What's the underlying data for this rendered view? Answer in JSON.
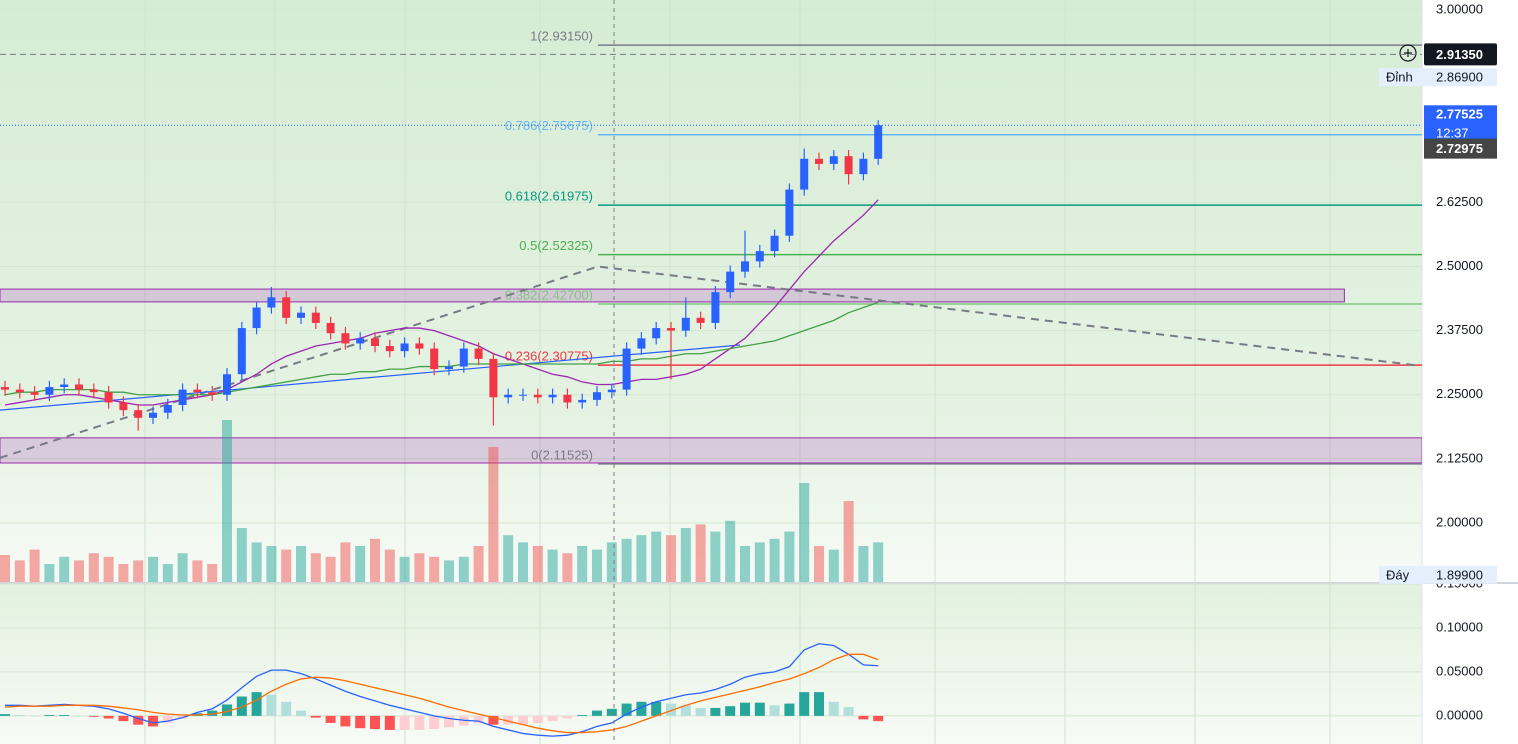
{
  "chart_data": {
    "type": "candlestick",
    "ylim": [
      1.885,
      3.0195
    ],
    "yticks": [
      {
        "value": 3.0,
        "label": "3.00000"
      },
      {
        "value": 2.625,
        "label": "2.62500"
      },
      {
        "value": 2.5,
        "label": "2.50000"
      },
      {
        "value": 2.375,
        "label": "2.37500"
      },
      {
        "value": 2.25,
        "label": "2.25000"
      },
      {
        "value": 2.125,
        "label": "2.12500"
      },
      {
        "value": 2.0,
        "label": "2.00000"
      }
    ],
    "up_color": "#2962ff",
    "down_color": "#f23645",
    "open": [
      2.265,
      2.26,
      2.255,
      2.25,
      2.265,
      2.27,
      2.26,
      2.255,
      2.235,
      2.22,
      2.205,
      2.215,
      2.23,
      2.26,
      2.255,
      2.25,
      2.29,
      2.38,
      2.42,
      2.44,
      2.4,
      2.41,
      2.39,
      2.37,
      2.35,
      2.36,
      2.345,
      2.335,
      2.35,
      2.34,
      2.3,
      2.305,
      2.34,
      2.32,
      2.245,
      2.25,
      2.25,
      2.245,
      2.25,
      2.235,
      2.24,
      2.255,
      2.26,
      2.34,
      2.36,
      2.38,
      2.375,
      2.4,
      2.39,
      2.45,
      2.49,
      2.51,
      2.53,
      2.56,
      2.65,
      2.71,
      2.7,
      2.715,
      2.68,
      2.71
    ],
    "high": [
      2.277,
      2.272,
      2.267,
      2.277,
      2.282,
      2.282,
      2.272,
      2.267,
      2.247,
      2.232,
      2.227,
      2.242,
      2.272,
      2.272,
      2.267,
      2.302,
      2.392,
      2.432,
      2.46,
      2.452,
      2.422,
      2.422,
      2.402,
      2.382,
      2.372,
      2.372,
      2.357,
      2.362,
      2.362,
      2.352,
      2.317,
      2.352,
      2.352,
      2.332,
      2.262,
      2.262,
      2.262,
      2.262,
      2.262,
      2.252,
      2.267,
      2.272,
      2.352,
      2.372,
      2.392,
      2.392,
      2.44,
      2.412,
      2.462,
      2.502,
      2.57,
      2.542,
      2.572,
      2.662,
      2.73,
      2.722,
      2.727,
      2.727,
      2.722,
      2.785
    ],
    "low": [
      2.248,
      2.243,
      2.238,
      2.238,
      2.253,
      2.248,
      2.243,
      2.223,
      2.208,
      2.18,
      2.193,
      2.203,
      2.218,
      2.243,
      2.238,
      2.238,
      2.278,
      2.368,
      2.408,
      2.388,
      2.388,
      2.378,
      2.358,
      2.338,
      2.338,
      2.333,
      2.323,
      2.323,
      2.328,
      2.288,
      2.288,
      2.293,
      2.308,
      2.19,
      2.233,
      2.238,
      2.233,
      2.233,
      2.223,
      2.223,
      2.228,
      2.243,
      2.248,
      2.328,
      2.348,
      2.28,
      2.363,
      2.378,
      2.378,
      2.438,
      2.478,
      2.498,
      2.518,
      2.548,
      2.638,
      2.688,
      2.688,
      2.66,
      2.668,
      2.698
    ],
    "close": [
      2.26,
      2.255,
      2.25,
      2.265,
      2.27,
      2.26,
      2.255,
      2.235,
      2.22,
      2.205,
      2.215,
      2.23,
      2.26,
      2.255,
      2.25,
      2.29,
      2.38,
      2.42,
      2.44,
      2.4,
      2.41,
      2.39,
      2.37,
      2.35,
      2.36,
      2.345,
      2.335,
      2.35,
      2.34,
      2.3,
      2.305,
      2.34,
      2.32,
      2.245,
      2.25,
      2.25,
      2.245,
      2.25,
      2.235,
      2.24,
      2.255,
      2.26,
      2.34,
      2.36,
      2.38,
      2.375,
      2.4,
      2.39,
      2.45,
      2.49,
      2.51,
      2.53,
      2.56,
      2.65,
      2.71,
      2.7,
      2.715,
      2.68,
      2.71,
      2.77525
    ],
    "volume": {
      "ylim": [
        0,
        100
      ],
      "up_color": "rgba(38,166,154,0.5)",
      "down_color": "rgba(239,83,80,0.5)",
      "values": [
        15,
        12,
        18,
        10,
        14,
        12,
        16,
        14,
        10,
        12,
        14,
        10,
        16,
        12,
        10,
        90,
        30,
        22,
        20,
        18,
        20,
        16,
        14,
        22,
        20,
        24,
        18,
        14,
        16,
        14,
        12,
        14,
        20,
        75,
        26,
        22,
        20,
        18,
        16,
        20,
        18,
        22,
        24,
        26,
        28,
        26,
        30,
        32,
        28,
        34,
        20,
        22,
        24,
        28,
        55,
        20,
        18,
        45,
        20,
        22
      ]
    },
    "moving_averages": [
      {
        "color": "#9c27b0",
        "values": [
          2.23,
          2.235,
          2.24,
          2.245,
          2.25,
          2.25,
          2.245,
          2.24,
          2.235,
          2.23,
          2.23,
          2.235,
          2.24,
          2.245,
          2.25,
          2.26,
          2.275,
          2.29,
          2.31,
          2.325,
          2.335,
          2.345,
          2.35,
          2.355,
          2.36,
          2.37,
          2.375,
          2.38,
          2.38,
          2.375,
          2.365,
          2.355,
          2.345,
          2.33,
          2.32,
          2.31,
          2.3,
          2.29,
          2.285,
          2.275,
          2.27,
          2.27,
          2.275,
          2.28,
          2.28,
          2.285,
          2.29,
          2.3,
          2.32,
          2.34,
          2.36,
          2.39,
          2.42,
          2.455,
          2.49,
          2.52,
          2.55,
          2.575,
          2.6,
          2.63
        ]
      },
      {
        "color": "#43a047",
        "values": [
          2.25,
          2.255,
          2.255,
          2.26,
          2.26,
          2.26,
          2.26,
          2.255,
          2.255,
          2.25,
          2.25,
          2.25,
          2.25,
          2.25,
          2.25,
          2.255,
          2.26,
          2.265,
          2.27,
          2.275,
          2.28,
          2.285,
          2.29,
          2.29,
          2.295,
          2.295,
          2.3,
          2.3,
          2.305,
          2.305,
          2.305,
          2.31,
          2.31,
          2.31,
          2.31,
          2.31,
          2.31,
          2.31,
          2.31,
          2.31,
          2.31,
          2.315,
          2.315,
          2.32,
          2.32,
          2.325,
          2.33,
          2.33,
          2.335,
          2.34,
          2.345,
          2.35,
          2.355,
          2.365,
          2.375,
          2.385,
          2.395,
          2.41,
          2.42,
          2.43
        ]
      }
    ],
    "trend_lines": [
      {
        "color": "#787b86",
        "dashed": true,
        "points": [
          {
            "x": -0.34,
            "y": 2.127
          },
          {
            "x": 40.07,
            "y": 2.5
          },
          {
            "x": 95.47,
            "y": 2.307
          }
        ]
      },
      {
        "color": "#2962ff",
        "dashed": false,
        "points": [
          {
            "x": -0.34,
            "y": 2.22
          },
          {
            "x": 49.66,
            "y": 2.347
          }
        ]
      }
    ],
    "zones": [
      {
        "color": "rgba(156,39,176,0.2)",
        "border": "#9c27b0",
        "xlim": [
          -0.34,
          90.5
        ],
        "ylim": [
          2.431,
          2.456
        ]
      },
      {
        "color": "rgba(156,39,176,0.2)",
        "border": "#9c27b0",
        "xlim": [
          -0.34,
          95.75
        ],
        "ylim": [
          2.117,
          2.166
        ]
      }
    ],
    "fib_levels": [
      {
        "label": "1(2.93150)",
        "value": 2.9315,
        "color": "#787b86"
      },
      {
        "label": "0.786(2.75675)",
        "value": 2.75675,
        "color": "#64b5f6"
      },
      {
        "label": "0.618(2.61975)",
        "value": 2.61975,
        "color": "#089981"
      },
      {
        "label": "0.5(2.52325)",
        "value": 2.52325,
        "color": "#4caf50"
      },
      {
        "label": "0.382(2.42700)",
        "value": 2.427,
        "color": "#81c784"
      },
      {
        "label": "0.236(2.30775)",
        "value": 2.30775,
        "color": "#f23645"
      },
      {
        "label": "0(2.11525)",
        "value": 2.11525,
        "color": "#787b86"
      }
    ],
    "crosshair": {
      "x": 41.15,
      "y": {
        "value": 2.9135,
        "label": "2.91350"
      }
    },
    "price_tags": [
      {
        "caption": "Đỉnh",
        "value": 2.869,
        "label": "2.86900"
      },
      {
        "caption": "12:37",
        "value": 2.77525,
        "label": "2.77525",
        "color": "#2962ff"
      },
      {
        "value": 2.72975,
        "label": "2.72975",
        "color": "#454545"
      },
      {
        "caption": "Đáy",
        "value": 1.899,
        "label": "1.89900"
      }
    ],
    "macd": {
      "ylim": [
        -0.032,
        0.15
      ],
      "yticks": [
        {
          "value": 0.15,
          "label": "0.15000"
        },
        {
          "value": 0.1,
          "label": "0.10000"
        },
        {
          "value": 0.05,
          "label": "0.05000"
        },
        {
          "value": 0,
          "label": "0.00000"
        }
      ],
      "macd": {
        "color": "#2962ff",
        "values": [
          0.012,
          0.012,
          0.011,
          0.012,
          0.013,
          0.012,
          0.011,
          0.008,
          0.003,
          -0.003,
          -0.008,
          -0.006,
          -0.002,
          0.004,
          0.008,
          0.018,
          0.032,
          0.045,
          0.052,
          0.052,
          0.048,
          0.042,
          0.035,
          0.028,
          0.022,
          0.017,
          0.012,
          0.008,
          0.004,
          0,
          -0.003,
          -0.005,
          -0.006,
          -0.012,
          -0.016,
          -0.02,
          -0.022,
          -0.023,
          -0.022,
          -0.018,
          -0.012,
          -0.008,
          0.002,
          0.01,
          0.016,
          0.02,
          0.024,
          0.026,
          0.03,
          0.036,
          0.044,
          0.048,
          0.05,
          0.056,
          0.075,
          0.082,
          0.08,
          0.07,
          0.058,
          0.057
        ]
      },
      "signal": {
        "color": "#ff6d00",
        "values": [
          0.01,
          0.011,
          0.011,
          0.011,
          0.012,
          0.012,
          0.012,
          0.011,
          0.009,
          0.007,
          0.004,
          0.002,
          0.001,
          0.001,
          0.002,
          0.005,
          0.01,
          0.018,
          0.028,
          0.036,
          0.042,
          0.044,
          0.043,
          0.04,
          0.036,
          0.032,
          0.028,
          0.024,
          0.02,
          0.015,
          0.01,
          0.006,
          0.002,
          -0.002,
          -0.006,
          -0.01,
          -0.014,
          -0.017,
          -0.019,
          -0.019,
          -0.018,
          -0.016,
          -0.012,
          -0.006,
          0,
          0.006,
          0.012,
          0.017,
          0.021,
          0.025,
          0.029,
          0.033,
          0.038,
          0.042,
          0.048,
          0.055,
          0.064,
          0.07,
          0.07,
          0.064
        ]
      },
      "histogram": {
        "values": [
          0.002,
          0.001,
          0,
          0.001,
          0.001,
          0,
          -0.001,
          -0.003,
          -0.006,
          -0.01,
          -0.012,
          -0.008,
          -0.003,
          0.003,
          0.006,
          0.013,
          0.022,
          0.027,
          0.024,
          0.016,
          0.006,
          -0.002,
          -0.008,
          -0.012,
          -0.014,
          -0.015,
          -0.016,
          -0.016,
          -0.016,
          -0.015,
          -0.013,
          -0.011,
          -0.008,
          -0.01,
          -0.01,
          -0.01,
          -0.008,
          -0.006,
          -0.003,
          0.001,
          0.006,
          0.008,
          0.014,
          0.016,
          0.016,
          0.014,
          0.012,
          0.009,
          0.009,
          0.011,
          0.015,
          0.015,
          0.012,
          0.014,
          0.027,
          0.027,
          0.016,
          0.01,
          -0.004,
          -0.006
        ]
      }
    }
  }
}
